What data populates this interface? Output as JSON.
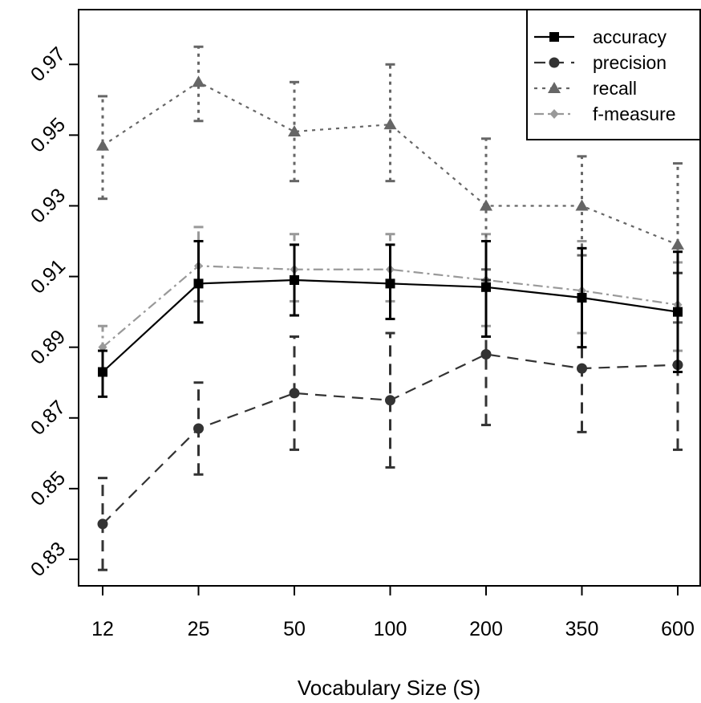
{
  "chart_data": {
    "type": "line",
    "title": "",
    "xlabel": "Vocabulary Size (S)",
    "ylabel": "",
    "categories": [
      "12",
      "25",
      "50",
      "100",
      "200",
      "350",
      "600"
    ],
    "ylim": [
      0.8225,
      0.9855
    ],
    "yticks": [
      "0.83",
      "0.85",
      "0.87",
      "0.89",
      "0.91",
      "0.93",
      "0.95",
      "0.97"
    ],
    "grid": false,
    "legend_position": "top-right",
    "series": [
      {
        "name": "accuracy",
        "values": [
          0.883,
          0.908,
          0.909,
          0.908,
          0.907,
          0.904,
          0.9
        ],
        "lower": [
          0.876,
          0.897,
          0.899,
          0.898,
          0.893,
          0.89,
          0.883
        ],
        "upper": [
          0.889,
          0.92,
          0.919,
          0.919,
          0.92,
          0.918,
          0.917
        ],
        "color": "#000000",
        "dash": "",
        "marker": "square"
      },
      {
        "name": "precision",
        "values": [
          0.84,
          0.867,
          0.877,
          0.875,
          0.888,
          0.884,
          0.885
        ],
        "lower": [
          0.827,
          0.854,
          0.861,
          0.856,
          0.868,
          0.866,
          0.861
        ],
        "upper": [
          0.853,
          0.88,
          0.893,
          0.894,
          0.909,
          0.903,
          0.911
        ],
        "color": "#333333",
        "dash": "14,9",
        "marker": "circle"
      },
      {
        "name": "recall",
        "values": [
          0.947,
          0.965,
          0.951,
          0.953,
          0.93,
          0.93,
          0.919
        ],
        "lower": [
          0.932,
          0.954,
          0.937,
          0.937,
          0.912,
          0.916,
          0.897
        ],
        "upper": [
          0.961,
          0.975,
          0.965,
          0.97,
          0.949,
          0.944,
          0.942
        ],
        "color": "#666666",
        "dash": "4,6",
        "marker": "triangle"
      },
      {
        "name": "f-measure",
        "values": [
          0.89,
          0.913,
          0.912,
          0.912,
          0.909,
          0.906,
          0.902
        ],
        "lower": [
          0.883,
          0.903,
          0.903,
          0.903,
          0.896,
          0.894,
          0.889
        ],
        "upper": [
          0.896,
          0.924,
          0.922,
          0.922,
          0.922,
          0.92,
          0.914
        ],
        "color": "#999999",
        "dash": "12,5,3,5",
        "marker": "diamond"
      }
    ]
  }
}
